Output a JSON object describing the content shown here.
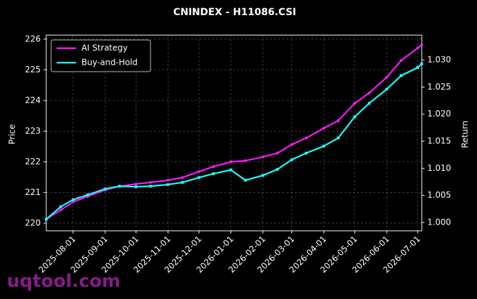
{
  "chart_data": {
    "type": "line",
    "title": "CNINDEX - H11086.CSI",
    "ylabel": "Price",
    "y2label": "Return",
    "watermark": "uqtool.com",
    "x": [
      "2025-07-06",
      "2025-07-20",
      "2025-08-01",
      "2025-08-15",
      "2025-09-01",
      "2025-09-15",
      "2025-10-01",
      "2025-10-15",
      "2025-11-01",
      "2025-11-15",
      "2025-12-01",
      "2025-12-15",
      "2026-01-01",
      "2026-01-15",
      "2026-02-01",
      "2026-02-15",
      "2026-03-01",
      "2026-03-15",
      "2026-04-01",
      "2026-04-15",
      "2026-05-01",
      "2026-05-15",
      "2026-06-01",
      "2026-06-15",
      "2026-07-01",
      "2026-07-05"
    ],
    "series": [
      {
        "name": "AI Strategy",
        "color": "#ff1aff",
        "axis": "y2",
        "values": [
          1.0006,
          1.0023,
          1.0038,
          1.0048,
          1.006,
          1.0067,
          1.0071,
          1.0074,
          1.0078,
          1.0083,
          1.0094,
          1.0103,
          1.0112,
          1.0114,
          1.0121,
          1.0128,
          1.0144,
          1.0156,
          1.0174,
          1.0188,
          1.022,
          1.0239,
          1.0268,
          1.0299,
          1.0322,
          1.0328
        ]
      },
      {
        "name": "Buy-and-Hold",
        "color": "#1affff",
        "axis": "y2",
        "values": [
          1.0006,
          1.0029,
          1.0042,
          1.0051,
          1.0062,
          1.0067,
          1.0066,
          1.0067,
          1.007,
          1.0074,
          1.0083,
          1.009,
          1.0097,
          1.0078,
          1.0087,
          1.0098,
          1.0116,
          1.0128,
          1.0141,
          1.0156,
          1.0195,
          1.022,
          1.0246,
          1.0271,
          1.0286,
          1.0293
        ]
      }
    ],
    "xlim": [
      "2025-07-06",
      "2026-07-05"
    ],
    "xticks": [
      "2025-08-01",
      "2025-09-01",
      "2025-10-01",
      "2025-11-01",
      "2025-12-01",
      "2026-01-01",
      "2026-02-01",
      "2026-03-01",
      "2026-04-01",
      "2026-05-01",
      "2026-06-01",
      "2026-07-01"
    ],
    "ylim": [
      219.75,
      226.13
    ],
    "yticks": [
      220,
      221,
      222,
      223,
      224,
      225,
      226
    ],
    "y2lim": [
      0.99847,
      1.03458
    ],
    "y2ticks": [
      {
        "value": 1.0,
        "label": "1.000"
      },
      {
        "value": 1.005,
        "label": "1.005"
      },
      {
        "value": 1.01,
        "label": "1.010"
      },
      {
        "value": 1.015,
        "label": "1.015"
      },
      {
        "value": 1.02,
        "label": "1.020"
      },
      {
        "value": 1.025,
        "label": "1.025"
      },
      {
        "value": 1.03,
        "label": "1.030"
      }
    ],
    "grid": true,
    "legend": "upper left"
  }
}
